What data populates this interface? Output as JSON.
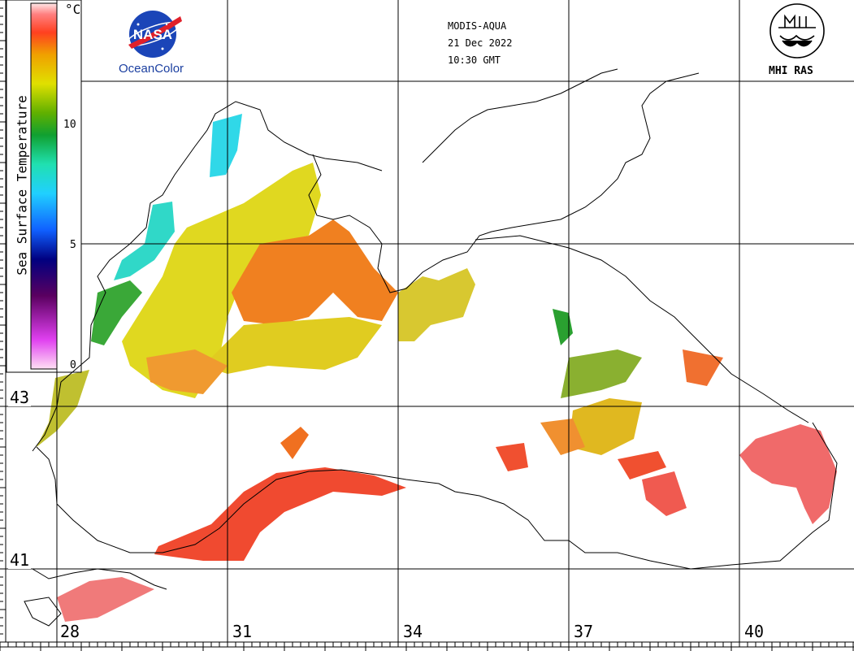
{
  "header": {
    "sensor": "MODIS-AQUA",
    "date": "21 Dec 2022",
    "time": "10:30 GMT"
  },
  "logos": {
    "left": {
      "badge": "NASA",
      "caption": "OceanColor",
      "icon": "nasa-meatball-icon"
    },
    "right": {
      "caption": "MHI RAS",
      "icon": "mhi-ras-emblem-icon"
    }
  },
  "legend": {
    "title": "Sea Surface Temperature",
    "unit": "°C",
    "ticks": [
      "10",
      "5",
      "0"
    ],
    "colors": [
      "#ffd6f0",
      "#e040f0",
      "#5a0060",
      "#000080",
      "#1060ff",
      "#20d0ff",
      "#20e0b0",
      "#10a030",
      "#60b000",
      "#e0e000",
      "#f0a000",
      "#ff6000",
      "#ff3030",
      "#ff6a6a",
      "#ffd0d0"
    ]
  },
  "grid": {
    "latitudes": [
      "43",
      "41"
    ],
    "longitudes": [
      "28",
      "31",
      "34",
      "37",
      "40"
    ]
  }
}
